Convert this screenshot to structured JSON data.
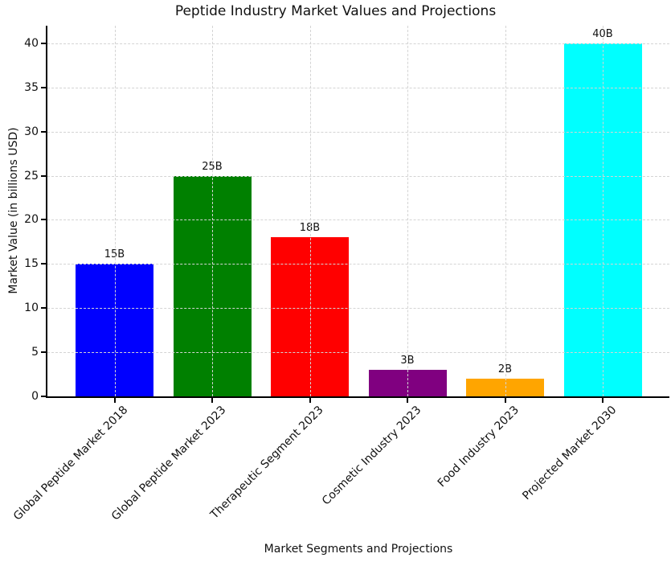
{
  "chart_data": {
    "type": "bar",
    "title": "Peptide Industry Market Values and Projections",
    "xlabel": "Market Segments and Projections",
    "ylabel": "Market Value (in billions USD)",
    "categories": [
      "Global Peptide Market 2018",
      "Global Peptide Market 2023",
      "Therapeutic Segment 2023",
      "Cosmetic Industry 2023",
      "Food Industry 2023",
      "Projected Market 2030"
    ],
    "values": [
      15,
      25,
      18,
      3,
      2,
      40
    ],
    "bar_labels": [
      "15B",
      "25B",
      "18B",
      "3B",
      "2B",
      "40B"
    ],
    "bar_colors": [
      "#0000ff",
      "#008000",
      "#ff0000",
      "#800080",
      "#ffa500",
      "#00ffff"
    ],
    "yticks": [
      0,
      5,
      10,
      15,
      20,
      25,
      30,
      35,
      40
    ],
    "ylim": [
      0,
      42
    ],
    "grid": true,
    "grid_style": "dashed",
    "grid_over_bars": true,
    "legend": "none",
    "x_tick_rotation": 45,
    "background": "#ffffff",
    "spine_color": "#000000"
  }
}
